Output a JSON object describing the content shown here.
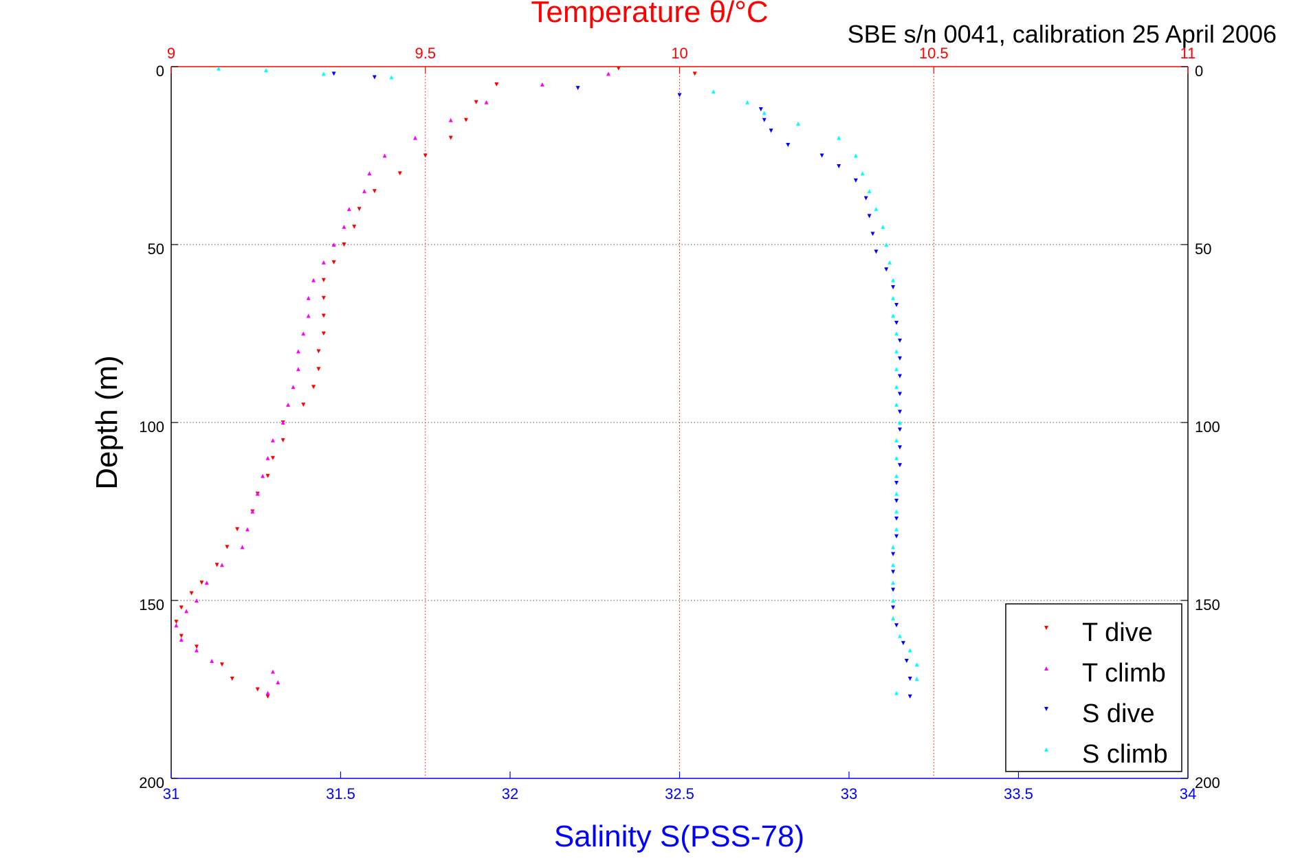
{
  "chart_data": {
    "type": "scatter",
    "title": "Temperature θ/°C",
    "subtitle": "SBE s/n 0041, calibration 25 April 2006",
    "ylabel": "Depth (m)",
    "xlabel_bottom": "Salinity S(PSS-78)",
    "xlabel_top": "Temperature θ/°C",
    "ylim": [
      0,
      200
    ],
    "y_reversed": true,
    "salinity_xlim": [
      31,
      34
    ],
    "temperature_xlim": [
      9,
      11
    ],
    "y_ticks": [
      "0",
      "50",
      "100",
      "150",
      "200"
    ],
    "y_tick_values": [
      0,
      50,
      100,
      150,
      200
    ],
    "bottom_ticks": [
      "31",
      "31.5",
      "32",
      "32.5",
      "33",
      "33.5",
      "34"
    ],
    "bottom_tick_values": [
      31,
      31.5,
      32,
      32.5,
      33,
      33.5,
      34
    ],
    "top_ticks": [
      "9",
      "9.5",
      "10",
      "10.5",
      "11"
    ],
    "top_tick_values": [
      9,
      9.5,
      10,
      10.5,
      11
    ],
    "grid": "dotted horizontal (depth) and vertical (temperature)",
    "legend_position": "bottom-right",
    "colors": {
      "temperature_axis": "#ff0000",
      "salinity_axis": "#0000ff",
      "t_dive": "#ff0000",
      "t_climb": "#ff00ff",
      "s_dive": "#0000ff",
      "s_climb": "#00ffff",
      "grid": "#555555"
    },
    "series": [
      {
        "name": "T dive",
        "axis": "temperature",
        "marker": "triangle-down",
        "color": "#ff0000",
        "points": [
          [
            9.88,
            0.5
          ],
          [
            10.03,
            2
          ],
          [
            9.64,
            5
          ],
          [
            9.6,
            10
          ],
          [
            9.58,
            15
          ],
          [
            9.55,
            20
          ],
          [
            9.5,
            25
          ],
          [
            9.45,
            30
          ],
          [
            9.4,
            35
          ],
          [
            9.37,
            40
          ],
          [
            9.36,
            45
          ],
          [
            9.34,
            50
          ],
          [
            9.32,
            55
          ],
          [
            9.3,
            60
          ],
          [
            9.3,
            65
          ],
          [
            9.3,
            70
          ],
          [
            9.3,
            75
          ],
          [
            9.29,
            80
          ],
          [
            9.29,
            85
          ],
          [
            9.28,
            90
          ],
          [
            9.26,
            95
          ],
          [
            9.22,
            100
          ],
          [
            9.22,
            105
          ],
          [
            9.2,
            110
          ],
          [
            9.19,
            115
          ],
          [
            9.17,
            120
          ],
          [
            9.16,
            125
          ],
          [
            9.13,
            130
          ],
          [
            9.11,
            135
          ],
          [
            9.09,
            140
          ],
          [
            9.06,
            145
          ],
          [
            9.04,
            148
          ],
          [
            9.02,
            152
          ],
          [
            9.01,
            156
          ],
          [
            9.02,
            160
          ],
          [
            9.05,
            163
          ],
          [
            9.1,
            168
          ],
          [
            9.12,
            172
          ],
          [
            9.17,
            175
          ],
          [
            9.19,
            177
          ]
        ]
      },
      {
        "name": "T climb",
        "axis": "temperature",
        "marker": "triangle-up",
        "color": "#ff00ff",
        "points": [
          [
            9.86,
            2
          ],
          [
            9.73,
            5
          ],
          [
            9.62,
            10
          ],
          [
            9.55,
            15
          ],
          [
            9.48,
            20
          ],
          [
            9.42,
            25
          ],
          [
            9.39,
            30
          ],
          [
            9.38,
            35
          ],
          [
            9.35,
            40
          ],
          [
            9.34,
            45
          ],
          [
            9.32,
            50
          ],
          [
            9.3,
            55
          ],
          [
            9.28,
            60
          ],
          [
            9.27,
            65
          ],
          [
            9.27,
            70
          ],
          [
            9.26,
            75
          ],
          [
            9.25,
            80
          ],
          [
            9.25,
            85
          ],
          [
            9.24,
            90
          ],
          [
            9.23,
            95
          ],
          [
            9.22,
            100
          ],
          [
            9.2,
            105
          ],
          [
            9.19,
            110
          ],
          [
            9.18,
            115
          ],
          [
            9.17,
            120
          ],
          [
            9.16,
            125
          ],
          [
            9.15,
            130
          ],
          [
            9.14,
            135
          ],
          [
            9.1,
            140
          ],
          [
            9.07,
            145
          ],
          [
            9.05,
            150
          ],
          [
            9.03,
            153
          ],
          [
            9.01,
            157
          ],
          [
            9.02,
            161
          ],
          [
            9.05,
            164
          ],
          [
            9.08,
            167
          ],
          [
            9.2,
            170
          ],
          [
            9.21,
            173
          ],
          [
            9.19,
            176
          ]
        ]
      },
      {
        "name": "S dive",
        "axis": "salinity",
        "marker": "triangle-down",
        "color": "#0000ff",
        "points": [
          [
            31.48,
            2
          ],
          [
            31.6,
            3
          ],
          [
            32.2,
            6
          ],
          [
            32.5,
            8
          ],
          [
            32.74,
            12
          ],
          [
            32.75,
            15
          ],
          [
            32.77,
            18
          ],
          [
            32.82,
            22
          ],
          [
            32.92,
            25
          ],
          [
            32.97,
            28
          ],
          [
            33.02,
            32
          ],
          [
            33.05,
            37
          ],
          [
            33.06,
            42
          ],
          [
            33.07,
            47
          ],
          [
            33.08,
            52
          ],
          [
            33.11,
            57
          ],
          [
            33.13,
            62
          ],
          [
            33.14,
            67
          ],
          [
            33.14,
            72
          ],
          [
            33.15,
            77
          ],
          [
            33.15,
            82
          ],
          [
            33.15,
            87
          ],
          [
            33.15,
            92
          ],
          [
            33.15,
            97
          ],
          [
            33.15,
            102
          ],
          [
            33.15,
            107
          ],
          [
            33.15,
            112
          ],
          [
            33.14,
            117
          ],
          [
            33.14,
            122
          ],
          [
            33.14,
            127
          ],
          [
            33.14,
            132
          ],
          [
            33.13,
            137
          ],
          [
            33.13,
            142
          ],
          [
            33.13,
            147
          ],
          [
            33.13,
            152
          ],
          [
            33.14,
            157
          ],
          [
            33.16,
            162
          ],
          [
            33.17,
            167
          ],
          [
            33.18,
            172
          ],
          [
            33.18,
            177
          ]
        ]
      },
      {
        "name": "S climb",
        "axis": "salinity",
        "marker": "triangle-up",
        "color": "#00ffff",
        "points": [
          [
            31.14,
            0.5
          ],
          [
            31.28,
            1
          ],
          [
            31.45,
            2
          ],
          [
            31.65,
            3
          ],
          [
            32.6,
            7
          ],
          [
            32.7,
            10
          ],
          [
            32.75,
            13
          ],
          [
            32.85,
            16
          ],
          [
            32.97,
            20
          ],
          [
            33.02,
            25
          ],
          [
            33.04,
            30
          ],
          [
            33.06,
            35
          ],
          [
            33.08,
            40
          ],
          [
            33.1,
            45
          ],
          [
            33.11,
            50
          ],
          [
            33.12,
            55
          ],
          [
            33.13,
            60
          ],
          [
            33.13,
            65
          ],
          [
            33.13,
            70
          ],
          [
            33.14,
            75
          ],
          [
            33.14,
            80
          ],
          [
            33.14,
            85
          ],
          [
            33.14,
            90
          ],
          [
            33.14,
            95
          ],
          [
            33.15,
            100
          ],
          [
            33.14,
            105
          ],
          [
            33.14,
            110
          ],
          [
            33.14,
            115
          ],
          [
            33.14,
            120
          ],
          [
            33.14,
            125
          ],
          [
            33.14,
            130
          ],
          [
            33.13,
            135
          ],
          [
            33.13,
            140
          ],
          [
            33.13,
            145
          ],
          [
            33.13,
            150
          ],
          [
            33.13,
            155
          ],
          [
            33.15,
            160
          ],
          [
            33.18,
            164
          ],
          [
            33.2,
            168
          ],
          [
            33.2,
            172
          ],
          [
            33.14,
            176
          ]
        ]
      }
    ]
  }
}
